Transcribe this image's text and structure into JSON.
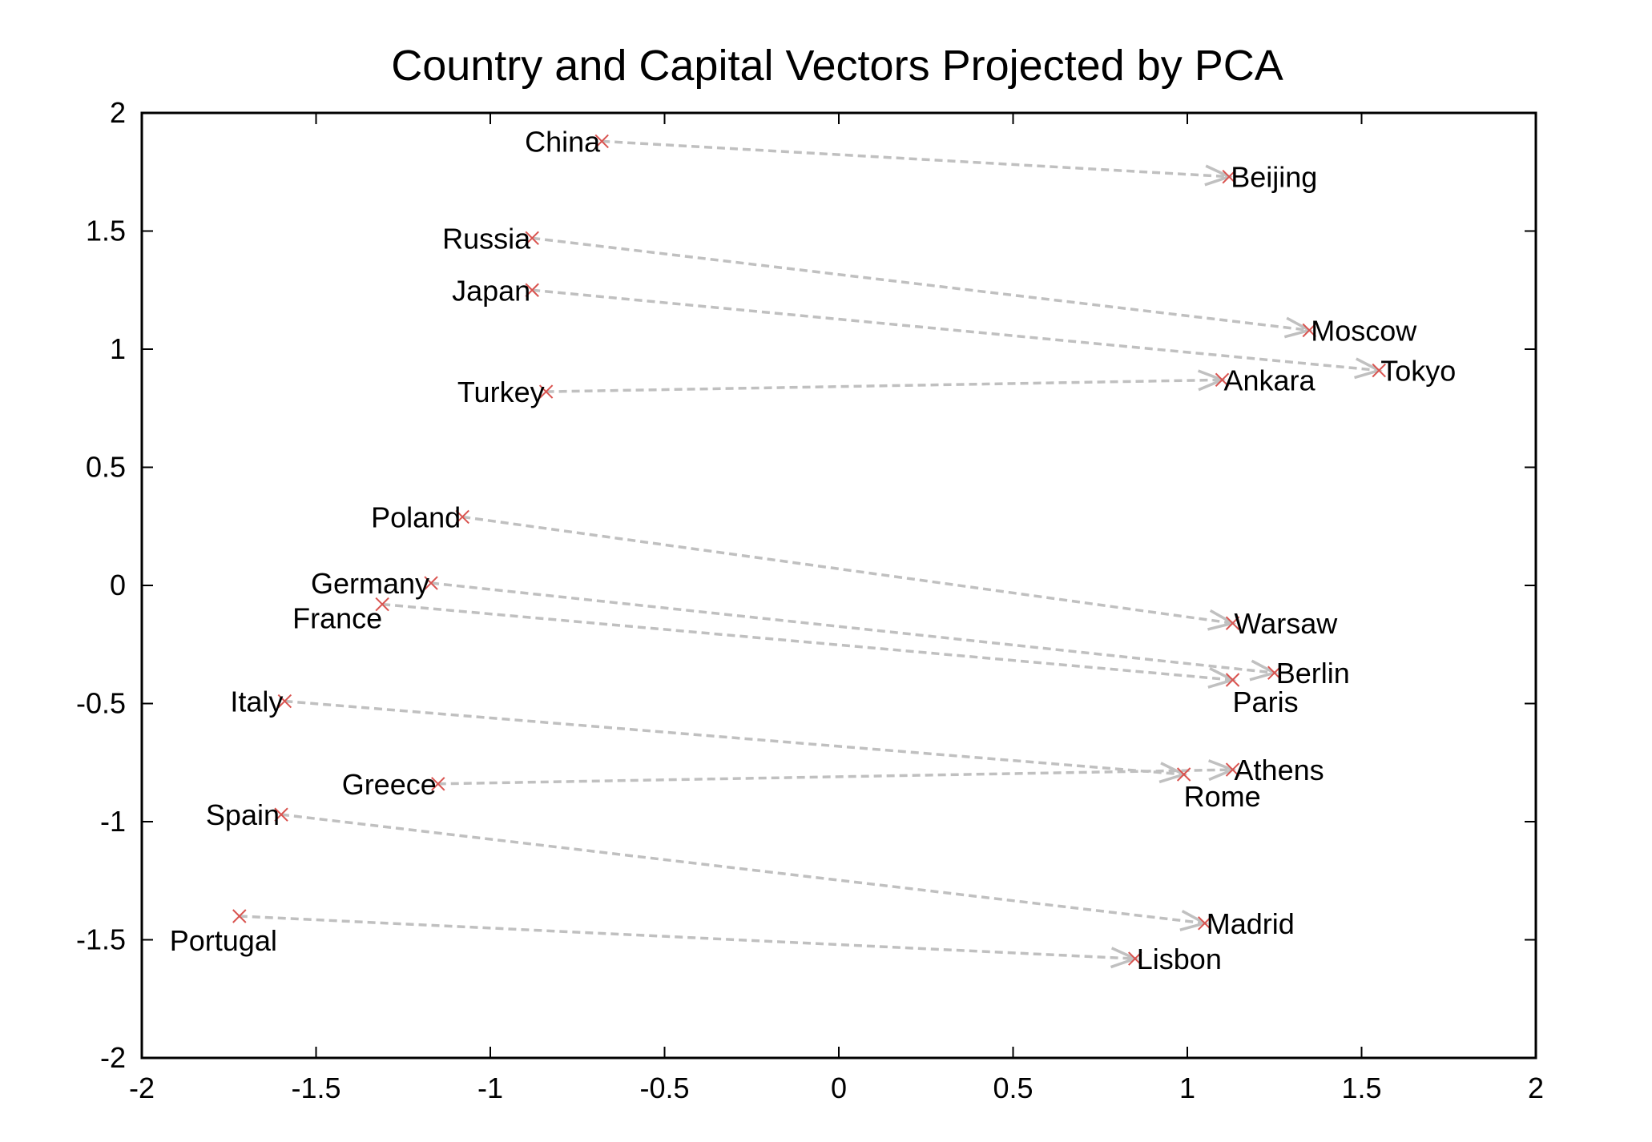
{
  "chart_data": {
    "type": "scatter",
    "title": "Country and Capital Vectors Projected by PCA",
    "xlabel": "",
    "ylabel": "",
    "xlim": [
      -2,
      2
    ],
    "ylim": [
      -2,
      2
    ],
    "xticks": [
      -2,
      -1.5,
      -1,
      -0.5,
      0,
      0.5,
      1,
      1.5,
      2
    ],
    "yticks": [
      -2,
      -1.5,
      -1,
      -0.5,
      0,
      0.5,
      1,
      1.5,
      2
    ],
    "xtick_labels": [
      "-2",
      "-1.5",
      "-1",
      "-0.5",
      "0",
      "0.5",
      "1",
      "1.5",
      "2"
    ],
    "ytick_labels": [
      "-2",
      "-1.5",
      "-1",
      "-0.5",
      "0",
      "0.5",
      "1",
      "1.5",
      "2"
    ],
    "grid": false,
    "colors": {
      "marker": "#d9534f",
      "arrow": "#c0c0c0",
      "axis": "#000000"
    },
    "points": [
      {
        "label": "China",
        "x": -0.68,
        "y": 1.88,
        "anchor": "end"
      },
      {
        "label": "Beijing",
        "x": 1.12,
        "y": 1.73,
        "anchor": "start"
      },
      {
        "label": "Russia",
        "x": -0.88,
        "y": 1.47,
        "anchor": "end"
      },
      {
        "label": "Moscow",
        "x": 1.35,
        "y": 1.08,
        "anchor": "start"
      },
      {
        "label": "Japan",
        "x": -0.88,
        "y": 1.25,
        "anchor": "end"
      },
      {
        "label": "Tokyo",
        "x": 1.55,
        "y": 0.91,
        "anchor": "start"
      },
      {
        "label": "Turkey",
        "x": -0.84,
        "y": 0.82,
        "anchor": "end"
      },
      {
        "label": "Ankara",
        "x": 1.1,
        "y": 0.87,
        "anchor": "start"
      },
      {
        "label": "Poland",
        "x": -1.08,
        "y": 0.29,
        "anchor": "end"
      },
      {
        "label": "Warsaw",
        "x": 1.13,
        "y": -0.16,
        "anchor": "start"
      },
      {
        "label": "Germany",
        "x": -1.17,
        "y": 0.01,
        "anchor": "end"
      },
      {
        "label": "Berlin",
        "x": 1.25,
        "y": -0.37,
        "anchor": "start"
      },
      {
        "label": "France",
        "x": -1.31,
        "y": -0.08,
        "anchor": "below-end"
      },
      {
        "label": "Paris",
        "x": 1.13,
        "y": -0.4,
        "anchor": "below-start"
      },
      {
        "label": "Italy",
        "x": -1.59,
        "y": -0.49,
        "anchor": "end"
      },
      {
        "label": "Rome",
        "x": 0.99,
        "y": -0.8,
        "anchor": "below-start"
      },
      {
        "label": "Greece",
        "x": -1.15,
        "y": -0.84,
        "anchor": "end"
      },
      {
        "label": "Athens",
        "x": 1.13,
        "y": -0.78,
        "anchor": "start"
      },
      {
        "label": "Spain",
        "x": -1.6,
        "y": -0.97,
        "anchor": "end"
      },
      {
        "label": "Madrid",
        "x": 1.05,
        "y": -1.43,
        "anchor": "start"
      },
      {
        "label": "Portugal",
        "x": -1.72,
        "y": -1.4,
        "anchor": "below-mid"
      },
      {
        "label": "Lisbon",
        "x": 0.85,
        "y": -1.58,
        "anchor": "start"
      }
    ],
    "arrows": [
      {
        "from": "China",
        "to": "Beijing"
      },
      {
        "from": "Russia",
        "to": "Moscow"
      },
      {
        "from": "Japan",
        "to": "Tokyo"
      },
      {
        "from": "Turkey",
        "to": "Ankara"
      },
      {
        "from": "Poland",
        "to": "Warsaw"
      },
      {
        "from": "Germany",
        "to": "Berlin"
      },
      {
        "from": "France",
        "to": "Paris"
      },
      {
        "from": "Italy",
        "to": "Rome"
      },
      {
        "from": "Greece",
        "to": "Athens"
      },
      {
        "from": "Spain",
        "to": "Madrid"
      },
      {
        "from": "Portugal",
        "to": "Lisbon"
      }
    ]
  }
}
